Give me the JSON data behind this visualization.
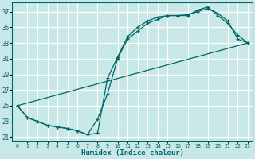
{
  "xlabel": "Humidex (Indice chaleur)",
  "bg_color": "#c8e8e8",
  "grid_color": "#ffffff",
  "line_color": "#006666",
  "xlim": [
    -0.5,
    23.5
  ],
  "ylim": [
    20.5,
    38.2
  ],
  "xticks": [
    0,
    1,
    2,
    3,
    4,
    5,
    6,
    7,
    8,
    9,
    10,
    11,
    12,
    13,
    14,
    15,
    16,
    17,
    18,
    19,
    20,
    21,
    22,
    23
  ],
  "yticks": [
    21,
    23,
    25,
    27,
    29,
    31,
    33,
    35,
    37
  ],
  "curve1_x": [
    0,
    1,
    2,
    3,
    4,
    5,
    6,
    7,
    8,
    9,
    10,
    11,
    12,
    13,
    14,
    15,
    16,
    17,
    18,
    19,
    20,
    21,
    22,
    23
  ],
  "curve1_y": [
    25,
    23.5,
    23.0,
    22.5,
    22.3,
    22.1,
    21.8,
    21.3,
    23.3,
    26.5,
    31.0,
    33.5,
    34.5,
    35.5,
    36.0,
    36.5,
    36.5,
    36.5,
    37.2,
    37.6,
    36.5,
    35.5,
    34.0,
    33.0
  ],
  "curve2_x": [
    0,
    1,
    2,
    3,
    4,
    5,
    6,
    7,
    8,
    9,
    10,
    11,
    12,
    13,
    14,
    15,
    16,
    17,
    18,
    19,
    20,
    21,
    22,
    23
  ],
  "curve2_y": [
    25,
    23.5,
    23.0,
    22.5,
    22.3,
    22.1,
    21.8,
    21.3,
    21.5,
    28.5,
    31.2,
    33.8,
    35.0,
    35.8,
    36.3,
    36.5,
    36.5,
    36.6,
    37.0,
    37.4,
    36.8,
    35.8,
    33.5,
    33.0
  ],
  "line3_x": [
    0,
    23
  ],
  "line3_y": [
    25,
    33
  ]
}
